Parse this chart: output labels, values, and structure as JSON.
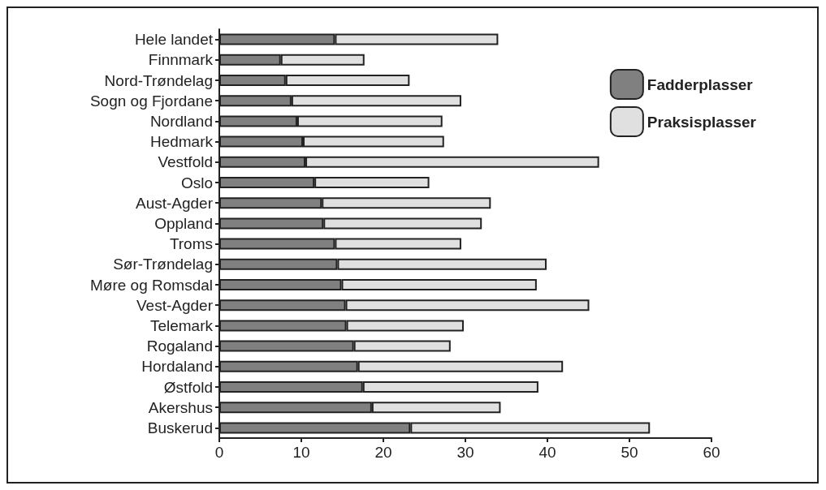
{
  "chart_data": {
    "type": "bar",
    "orientation": "horizontal",
    "stacked": true,
    "categories": [
      "Hele landet",
      "Finnmark",
      "Nord-Trøndelag",
      "Sogn og Fjordane",
      "Nordland",
      "Hedmark",
      "Vestfold",
      "Oslo",
      "Aust-Agder",
      "Oppland",
      "Troms",
      "Sør-Trøndelag",
      "Møre og Romsdal",
      "Vest-Agder",
      "Telemark",
      "Rogaland",
      "Hordaland",
      "Østfold",
      "Akershus",
      "Buskerud"
    ],
    "series": [
      {
        "name": "Fadderplasser",
        "color": "#808080",
        "values": [
          14.1,
          7.5,
          8.1,
          8.8,
          9.5,
          10.2,
          10.5,
          11.6,
          12.5,
          12.7,
          14.1,
          14.4,
          14.9,
          15.4,
          15.5,
          16.4,
          16.9,
          17.5,
          18.6,
          23.3
        ]
      },
      {
        "name": "Praksisplasser",
        "color": "#e0e0e0",
        "values": [
          19.9,
          10.2,
          15.1,
          20.7,
          17.7,
          17.2,
          35.8,
          14.0,
          20.6,
          19.3,
          15.4,
          25.5,
          23.8,
          29.7,
          14.3,
          11.8,
          25.0,
          21.4,
          15.7,
          29.2
        ]
      }
    ],
    "xlim": [
      0,
      60
    ],
    "xticks": [
      0,
      10,
      20,
      30,
      40,
      50,
      60
    ],
    "grid": false,
    "legend": "top right"
  }
}
